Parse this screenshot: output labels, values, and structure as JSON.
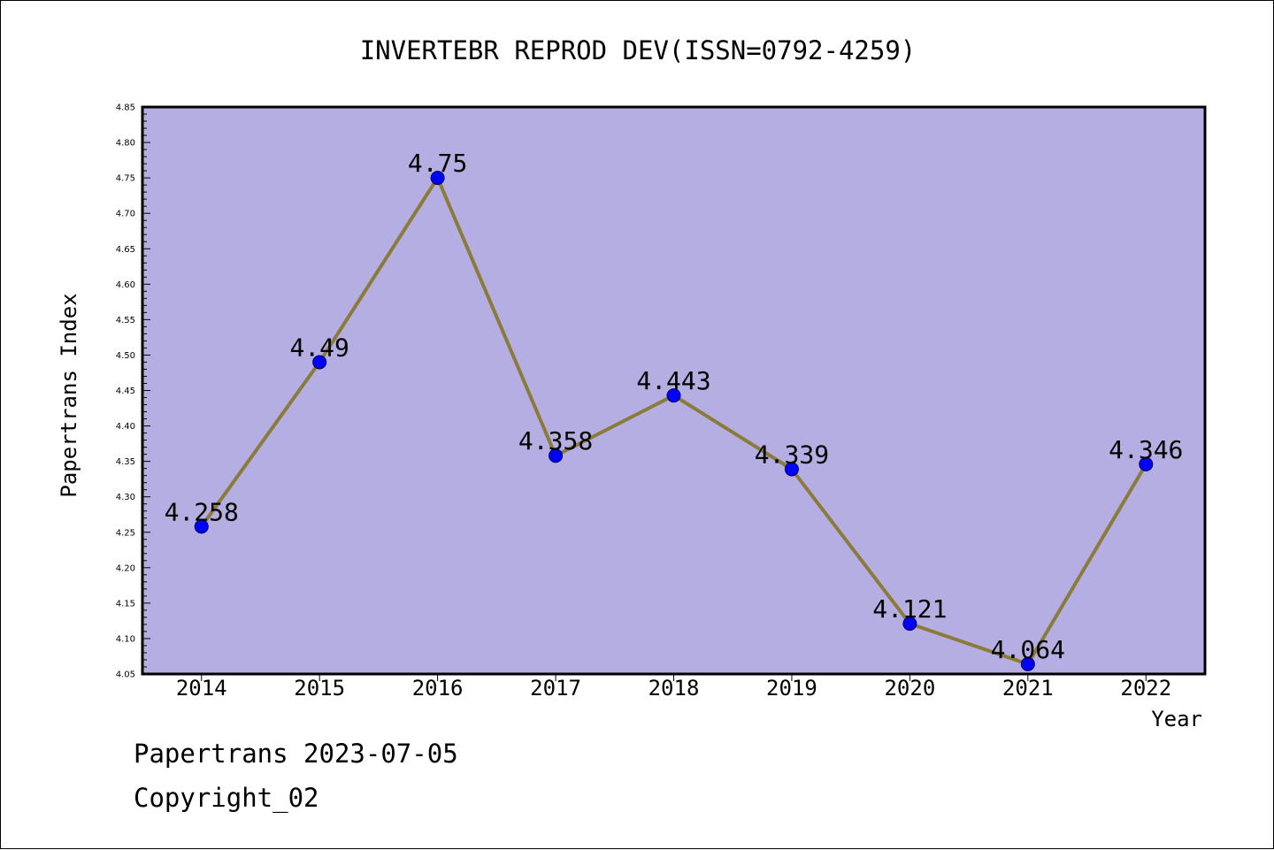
{
  "chart_data": {
    "type": "line",
    "title": "INVERTEBR REPROD DEV(ISSN=0792-4259)",
    "xlabel": "Year",
    "ylabel": "Papertrans Index",
    "categories": [
      "2014",
      "2015",
      "2016",
      "2017",
      "2018",
      "2019",
      "2020",
      "2021",
      "2022"
    ],
    "series": [
      {
        "values": [
          4.258,
          4.49,
          4.75,
          4.358,
          4.443,
          4.339,
          4.121,
          4.064,
          4.346
        ],
        "value_labels": [
          "4.258",
          "4.49",
          "4.75",
          "4.358",
          "4.443",
          "4.339",
          "4.121",
          "4.064",
          "4.346"
        ]
      }
    ],
    "ylim": [
      4.05,
      4.85
    ],
    "yticks": [
      "4.05",
      "4.10",
      "4.15",
      "4.20",
      "4.25",
      "4.30",
      "4.35",
      "4.40",
      "4.45",
      "4.50",
      "4.55",
      "4.60",
      "4.65",
      "4.70",
      "4.75",
      "4.80",
      "4.85"
    ],
    "grid": false,
    "legend": "none",
    "colors": {
      "plot_background": "#b5aee2",
      "line": "#8b7b3a",
      "marker": "#0000ff",
      "axis": "#000000"
    }
  },
  "footer": {
    "date_line": "Papertrans 2023-07-05",
    "copyright_line": "Copyright_02"
  }
}
